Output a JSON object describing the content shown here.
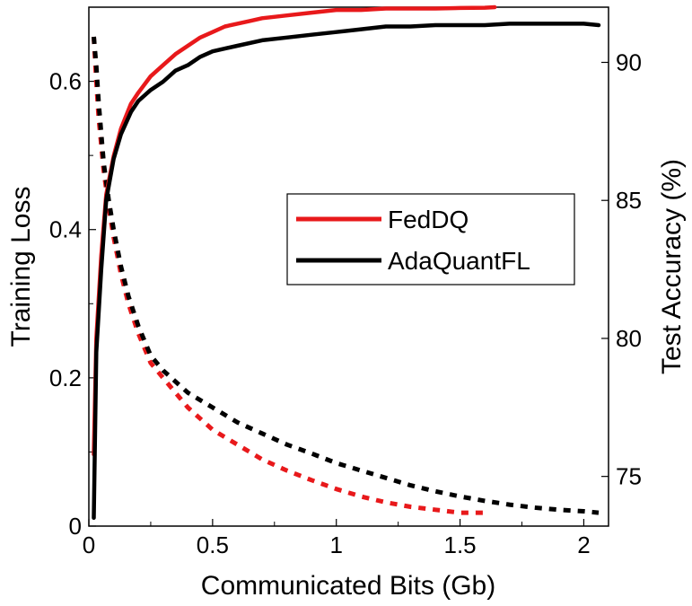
{
  "chart_data": {
    "type": "line",
    "xlabel": "Communicated  Bits (Gb)",
    "ylabel_left": "Training  Loss",
    "ylabel_right": "Test  Accuracy (%)",
    "xlim": [
      0,
      2.1
    ],
    "ylim_left": [
      0,
      0.7
    ],
    "ylim_right": [
      73.2,
      92
    ],
    "x_ticks": [
      0,
      0.5,
      1,
      1.5,
      2
    ],
    "x_tick_labels": [
      "0",
      "0.5",
      "1",
      "1.5",
      "2"
    ],
    "y_left_ticks": [
      0,
      0.2,
      0.4,
      0.6
    ],
    "y_left_tick_labels": [
      "0",
      "0.2",
      "0.4",
      "0.6"
    ],
    "y_right_ticks": [
      75,
      80,
      85,
      90
    ],
    "y_right_tick_labels": [
      "75",
      "80",
      "85",
      "90"
    ],
    "legend_position": "center-right",
    "legend": [
      {
        "name": "FedDQ",
        "color": "#e8191b"
      },
      {
        "name": "AdaQuantFL",
        "color": "#000000"
      }
    ],
    "series": [
      {
        "name": "FedDQ",
        "kind": "accuracy",
        "axis": "right",
        "style": "solid",
        "color": "#e8191b",
        "x": [
          0.02,
          0.03,
          0.05,
          0.07,
          0.1,
          0.13,
          0.17,
          0.2,
          0.25,
          0.3,
          0.35,
          0.4,
          0.45,
          0.5,
          0.55,
          0.6,
          0.65,
          0.7,
          0.8,
          0.9,
          1.0,
          1.1,
          1.2,
          1.3,
          1.4,
          1.5,
          1.6,
          1.64
        ],
        "y": [
          75.8,
          80.0,
          83.0,
          85.2,
          86.6,
          87.6,
          88.5,
          88.9,
          89.5,
          89.9,
          90.3,
          90.6,
          90.9,
          91.1,
          91.3,
          91.4,
          91.5,
          91.6,
          91.7,
          91.8,
          91.9,
          91.9,
          91.95,
          91.95,
          91.95,
          91.97,
          91.98,
          92.0
        ]
      },
      {
        "name": "AdaQuantFL",
        "kind": "accuracy",
        "axis": "right",
        "style": "solid",
        "color": "#000000",
        "x": [
          0.02,
          0.03,
          0.05,
          0.07,
          0.1,
          0.13,
          0.17,
          0.2,
          0.25,
          0.3,
          0.35,
          0.4,
          0.45,
          0.5,
          0.55,
          0.6,
          0.7,
          0.8,
          0.9,
          1.0,
          1.1,
          1.2,
          1.3,
          1.4,
          1.5,
          1.6,
          1.7,
          1.8,
          1.9,
          2.0,
          2.06
        ],
        "y": [
          73.5,
          79.5,
          82.5,
          85.0,
          86.5,
          87.4,
          88.2,
          88.6,
          89.0,
          89.3,
          89.7,
          89.9,
          90.2,
          90.4,
          90.5,
          90.6,
          90.8,
          90.9,
          91.0,
          91.1,
          91.2,
          91.3,
          91.3,
          91.35,
          91.35,
          91.35,
          91.4,
          91.4,
          91.4,
          91.4,
          91.35
        ]
      },
      {
        "name": "FedDQ",
        "kind": "loss",
        "axis": "left",
        "style": "dashed",
        "color": "#e8191b",
        "x": [
          0.02,
          0.03,
          0.04,
          0.06,
          0.08,
          0.1,
          0.13,
          0.16,
          0.2,
          0.25,
          0.3,
          0.4,
          0.5,
          0.6,
          0.7,
          0.8,
          0.9,
          1.0,
          1.1,
          1.2,
          1.3,
          1.4,
          1.5,
          1.6
        ],
        "y": [
          0.66,
          0.6,
          0.55,
          0.48,
          0.43,
          0.39,
          0.34,
          0.3,
          0.26,
          0.22,
          0.2,
          0.16,
          0.13,
          0.11,
          0.09,
          0.075,
          0.062,
          0.05,
          0.04,
          0.032,
          0.026,
          0.022,
          0.018,
          0.018
        ]
      },
      {
        "name": "AdaQuantFL",
        "kind": "loss",
        "axis": "left",
        "style": "dashed",
        "color": "#000000",
        "x": [
          0.02,
          0.03,
          0.04,
          0.06,
          0.08,
          0.1,
          0.13,
          0.16,
          0.2,
          0.25,
          0.3,
          0.4,
          0.5,
          0.6,
          0.7,
          0.8,
          0.9,
          1.0,
          1.1,
          1.2,
          1.3,
          1.4,
          1.5,
          1.6,
          1.7,
          1.8,
          1.9,
          2.0,
          2.06
        ],
        "y": [
          0.66,
          0.62,
          0.57,
          0.49,
          0.44,
          0.4,
          0.35,
          0.31,
          0.27,
          0.23,
          0.21,
          0.18,
          0.16,
          0.14,
          0.125,
          0.11,
          0.098,
          0.085,
          0.075,
          0.065,
          0.055,
          0.047,
          0.04,
          0.034,
          0.029,
          0.025,
          0.022,
          0.02,
          0.018
        ]
      }
    ]
  }
}
